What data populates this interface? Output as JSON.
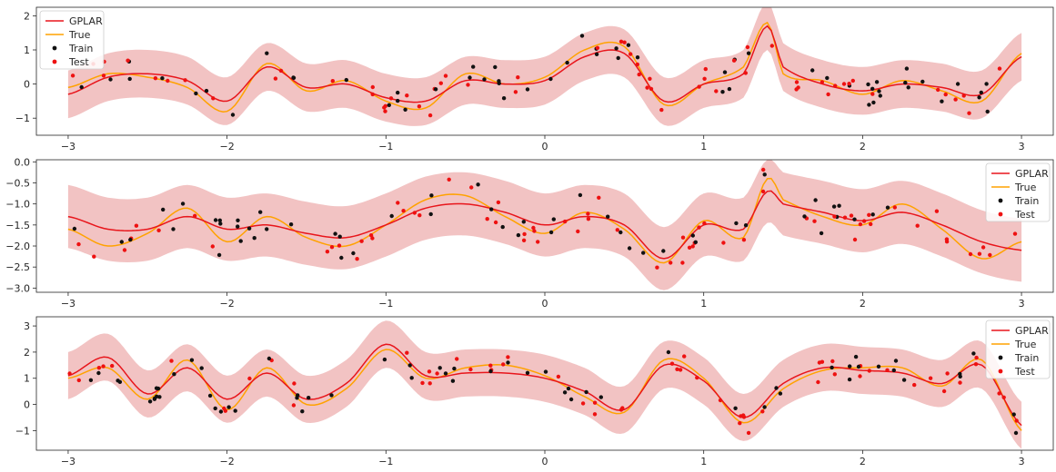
{
  "colors": {
    "gplar": "#e8151b",
    "true": "#ffa200",
    "train": "#111111",
    "test": "#ee1111",
    "band": "#f2c3c3",
    "axis": "#262626"
  },
  "chart_data": [
    {
      "type": "line",
      "xlim": [
        -3.2,
        3.2
      ],
      "ylim": [
        -1.5,
        2.25
      ],
      "xticks": [
        -3,
        -2,
        -1,
        0,
        1,
        2,
        3
      ],
      "xtick_labels": [
        "−3",
        "−2",
        "−1",
        "0",
        "1",
        "2",
        "3"
      ],
      "yticks": [
        -1,
        0,
        1,
        2
      ],
      "ytick_labels": [
        "−1",
        "0",
        "1",
        "2"
      ],
      "legend_position": "top-left",
      "legend": [
        "GPLAR",
        "True",
        "Train",
        "Test"
      ],
      "band_halfwidth": 0.7,
      "gplar": {
        "x": [
          -3,
          -2.75,
          -2.5,
          -2.25,
          -2,
          -1.75,
          -1.5,
          -1.25,
          -1,
          -0.75,
          -0.5,
          -0.25,
          0,
          0.25,
          0.5,
          0.75,
          1,
          1.25,
          1.4,
          1.5,
          1.75,
          2,
          2.25,
          2.5,
          2.75,
          3
        ],
        "y": [
          -0.3,
          0.2,
          0.3,
          0.1,
          -0.5,
          0.5,
          -0.1,
          0.0,
          -0.4,
          -0.5,
          0.1,
          0.0,
          0.1,
          0.8,
          0.9,
          -0.5,
          0.0,
          0.3,
          1.7,
          0.5,
          0.0,
          -0.2,
          0.0,
          -0.1,
          -0.3,
          0.8
        ]
      },
      "true": {
        "x": [
          -3,
          -2.75,
          -2.5,
          -2.25,
          -2,
          -1.75,
          -1.5,
          -1.25,
          -1,
          -0.75,
          -0.5,
          -0.25,
          0,
          0.25,
          0.5,
          0.75,
          1,
          1.25,
          1.4,
          1.5,
          1.75,
          2,
          2.25,
          2.5,
          2.75,
          3
        ],
        "y": [
          -0.1,
          0.3,
          0.2,
          -0.1,
          -0.8,
          0.6,
          -0.2,
          0.1,
          -0.5,
          -0.7,
          0.3,
          0.0,
          0.2,
          1.0,
          1.1,
          -0.6,
          0.0,
          0.5,
          1.8,
          0.3,
          0.1,
          -0.3,
          0.1,
          -0.2,
          -0.5,
          0.9
        ]
      }
    },
    {
      "type": "line",
      "xlim": [
        -3.2,
        3.2
      ],
      "ylim": [
        -3.1,
        0.05
      ],
      "xticks": [
        -3,
        -2,
        -1,
        0,
        1,
        2,
        3
      ],
      "xtick_labels": [
        "−3",
        "−2",
        "−1",
        "0",
        "1",
        "2",
        "3"
      ],
      "yticks": [
        0.0,
        -0.5,
        -1.0,
        -1.5,
        -2.0,
        -2.5,
        -3.0
      ],
      "ytick_labels": [
        "0.0",
        "−0.5",
        "−1.0",
        "−1.5",
        "−2.0",
        "−2.5",
        "−3.0"
      ],
      "legend_position": "top-right",
      "legend": [
        "GPLAR",
        "True",
        "Train",
        "Test"
      ],
      "band_halfwidth": 0.75,
      "gplar": {
        "x": [
          -3,
          -2.75,
          -2.5,
          -2.25,
          -2,
          -1.75,
          -1.5,
          -1.25,
          -1,
          -0.75,
          -0.5,
          -0.25,
          0,
          0.25,
          0.5,
          0.75,
          1,
          1.25,
          1.4,
          1.5,
          1.75,
          2,
          2.25,
          2.5,
          2.75,
          3
        ],
        "y": [
          -1.3,
          -1.6,
          -1.6,
          -1.3,
          -1.6,
          -1.5,
          -1.7,
          -1.8,
          -1.5,
          -1.1,
          -1.0,
          -1.2,
          -1.5,
          -1.3,
          -1.5,
          -2.3,
          -1.5,
          -1.6,
          -0.7,
          -1.0,
          -1.2,
          -1.4,
          -1.2,
          -1.5,
          -1.9,
          -2.1
        ]
      },
      "true": {
        "x": [
          -3,
          -2.75,
          -2.5,
          -2.25,
          -2,
          -1.75,
          -1.5,
          -1.25,
          -1,
          -0.75,
          -0.5,
          -0.25,
          0,
          0.25,
          0.5,
          0.75,
          1,
          1.25,
          1.4,
          1.5,
          1.75,
          2,
          2.25,
          2.5,
          2.75,
          3
        ],
        "y": [
          -1.6,
          -2.0,
          -1.7,
          -1.1,
          -1.9,
          -1.3,
          -1.8,
          -2.0,
          -1.5,
          -0.9,
          -0.8,
          -1.3,
          -1.7,
          -1.2,
          -1.6,
          -2.4,
          -1.4,
          -1.8,
          -0.4,
          -0.9,
          -1.3,
          -1.5,
          -1.0,
          -1.6,
          -2.3,
          -1.9
        ]
      }
    },
    {
      "type": "line",
      "xlim": [
        -3.2,
        3.2
      ],
      "ylim": [
        -1.75,
        3.35
      ],
      "xticks": [
        -3,
        -2,
        -1,
        0,
        1,
        2,
        3
      ],
      "xtick_labels": [
        "−3",
        "−2",
        "−1",
        "0",
        "1",
        "2",
        "3"
      ],
      "yticks": [
        -1,
        0,
        1,
        2,
        3
      ],
      "ytick_labels": [
        "−1",
        "0",
        "1",
        "2",
        "3"
      ],
      "legend_position": "top-right",
      "legend": [
        "GPLAR",
        "True",
        "Train",
        "Test"
      ],
      "band_halfwidth": 0.9,
      "gplar": {
        "x": [
          -3,
          -2.75,
          -2.5,
          -2.25,
          -2,
          -1.75,
          -1.5,
          -1.25,
          -1,
          -0.75,
          -0.5,
          -0.25,
          0,
          0.25,
          0.5,
          0.75,
          1,
          1.25,
          1.5,
          1.75,
          2,
          2.25,
          2.5,
          2.75,
          3
        ],
        "y": [
          1.1,
          1.8,
          0.4,
          1.4,
          0.2,
          1.2,
          0.2,
          0.8,
          2.3,
          1.1,
          1.2,
          1.2,
          1.0,
          0.5,
          -0.2,
          1.5,
          0.9,
          -0.5,
          0.8,
          1.4,
          1.3,
          1.2,
          0.8,
          1.5,
          -0.8
        ]
      },
      "true": {
        "x": [
          -3,
          -2.75,
          -2.5,
          -2.25,
          -2,
          -1.75,
          -1.5,
          -1.25,
          -1,
          -0.75,
          -0.5,
          -0.25,
          0,
          0.25,
          0.5,
          0.75,
          1,
          1.25,
          1.5,
          1.75,
          2,
          2.25,
          2.5,
          2.75,
          3
        ],
        "y": [
          1.0,
          1.4,
          0.2,
          1.7,
          -0.2,
          1.4,
          0.0,
          0.6,
          2.1,
          1.0,
          1.4,
          1.5,
          1.1,
          0.3,
          -0.3,
          1.7,
          1.0,
          -0.7,
          0.6,
          1.3,
          1.4,
          1.4,
          0.7,
          1.7,
          -1.0
        ]
      }
    }
  ]
}
